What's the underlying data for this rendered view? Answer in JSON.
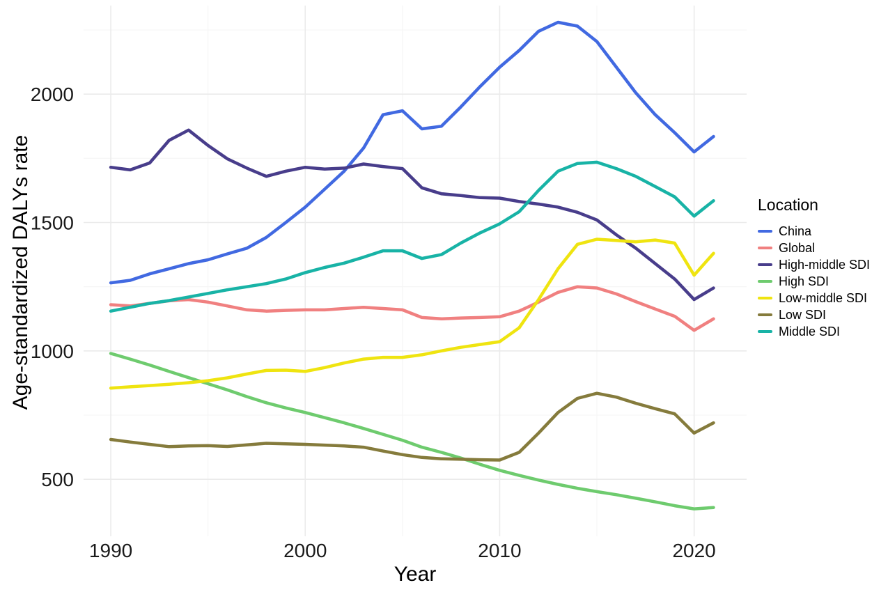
{
  "figure": {
    "xlabel": "Year",
    "ylabel": "Age-standardized DALYs rate",
    "legend_title": "Location"
  },
  "chart_data": {
    "type": "line",
    "title": "",
    "xlabel": "Year",
    "ylabel": "Age-standardized DALYs rate",
    "legend_title": "Location",
    "legend_position": "right",
    "grid": true,
    "x": [
      1990,
      1991,
      1992,
      1993,
      1994,
      1995,
      1996,
      1997,
      1998,
      1999,
      2000,
      2001,
      2002,
      2003,
      2004,
      2005,
      2006,
      2007,
      2008,
      2009,
      2010,
      2011,
      2012,
      2013,
      2014,
      2015,
      2016,
      2017,
      2018,
      2019,
      2020,
      2021
    ],
    "x_ticks": [
      1990,
      2000,
      2010,
      2020
    ],
    "x_minor_ticks": [
      1995,
      2005,
      2015
    ],
    "y_ticks": [
      500,
      1000,
      1500,
      2000
    ],
    "y_minor_ticks": [
      750,
      1250,
      1750,
      2250
    ],
    "xlim": [
      1988.6,
      2022.7
    ],
    "ylim": [
      278,
      2345
    ],
    "series": [
      {
        "name": "China",
        "color": "#4169E1",
        "values": [
          1265,
          1275,
          1300,
          1320,
          1340,
          1355,
          1378,
          1400,
          1442,
          1500,
          1560,
          1630,
          1700,
          1790,
          1920,
          1935,
          1865,
          1875,
          1950,
          2030,
          2105,
          2170,
          2245,
          2280,
          2265,
          2205,
          2105,
          2005,
          1920,
          1850,
          1775,
          1835
        ]
      },
      {
        "name": "Global",
        "color": "#F08080",
        "values": [
          1180,
          1175,
          1185,
          1195,
          1200,
          1190,
          1175,
          1160,
          1155,
          1158,
          1160,
          1160,
          1165,
          1170,
          1165,
          1160,
          1130,
          1125,
          1128,
          1130,
          1133,
          1155,
          1190,
          1228,
          1250,
          1245,
          1222,
          1192,
          1163,
          1135,
          1080,
          1125
        ]
      },
      {
        "name": "High-middle SDI",
        "color": "#483D8B",
        "values": [
          1715,
          1705,
          1732,
          1820,
          1860,
          1800,
          1748,
          1712,
          1680,
          1700,
          1715,
          1708,
          1712,
          1728,
          1718,
          1710,
          1635,
          1612,
          1605,
          1597,
          1595,
          1582,
          1572,
          1560,
          1540,
          1510,
          1452,
          1400,
          1340,
          1280,
          1200,
          1245
        ]
      },
      {
        "name": "High SDI",
        "color": "#6ECB6E",
        "values": [
          990,
          968,
          945,
          920,
          896,
          872,
          848,
          822,
          798,
          778,
          760,
          740,
          720,
          698,
          675,
          652,
          625,
          605,
          583,
          558,
          535,
          515,
          497,
          480,
          465,
          452,
          440,
          426,
          412,
          397,
          385,
          390
        ]
      },
      {
        "name": "Low-middle SDI",
        "color": "#EFE410",
        "values": [
          855,
          860,
          865,
          870,
          876,
          884,
          895,
          910,
          924,
          925,
          920,
          935,
          953,
          968,
          975,
          975,
          985,
          1000,
          1014,
          1025,
          1036,
          1090,
          1200,
          1320,
          1415,
          1435,
          1430,
          1425,
          1432,
          1420,
          1295,
          1380
        ]
      },
      {
        "name": "Low SDI",
        "color": "#857B3C",
        "values": [
          655,
          645,
          636,
          627,
          630,
          631,
          628,
          634,
          640,
          638,
          636,
          633,
          630,
          625,
          610,
          596,
          585,
          580,
          578,
          576,
          575,
          605,
          680,
          760,
          815,
          835,
          820,
          796,
          775,
          755,
          680,
          720
        ]
      },
      {
        "name": "Middle SDI",
        "color": "#18B3A6",
        "values": [
          1155,
          1170,
          1185,
          1196,
          1210,
          1224,
          1238,
          1250,
          1262,
          1280,
          1305,
          1325,
          1342,
          1365,
          1390,
          1390,
          1360,
          1375,
          1420,
          1460,
          1495,
          1542,
          1625,
          1700,
          1730,
          1735,
          1710,
          1680,
          1640,
          1600,
          1525,
          1585
        ]
      }
    ]
  }
}
